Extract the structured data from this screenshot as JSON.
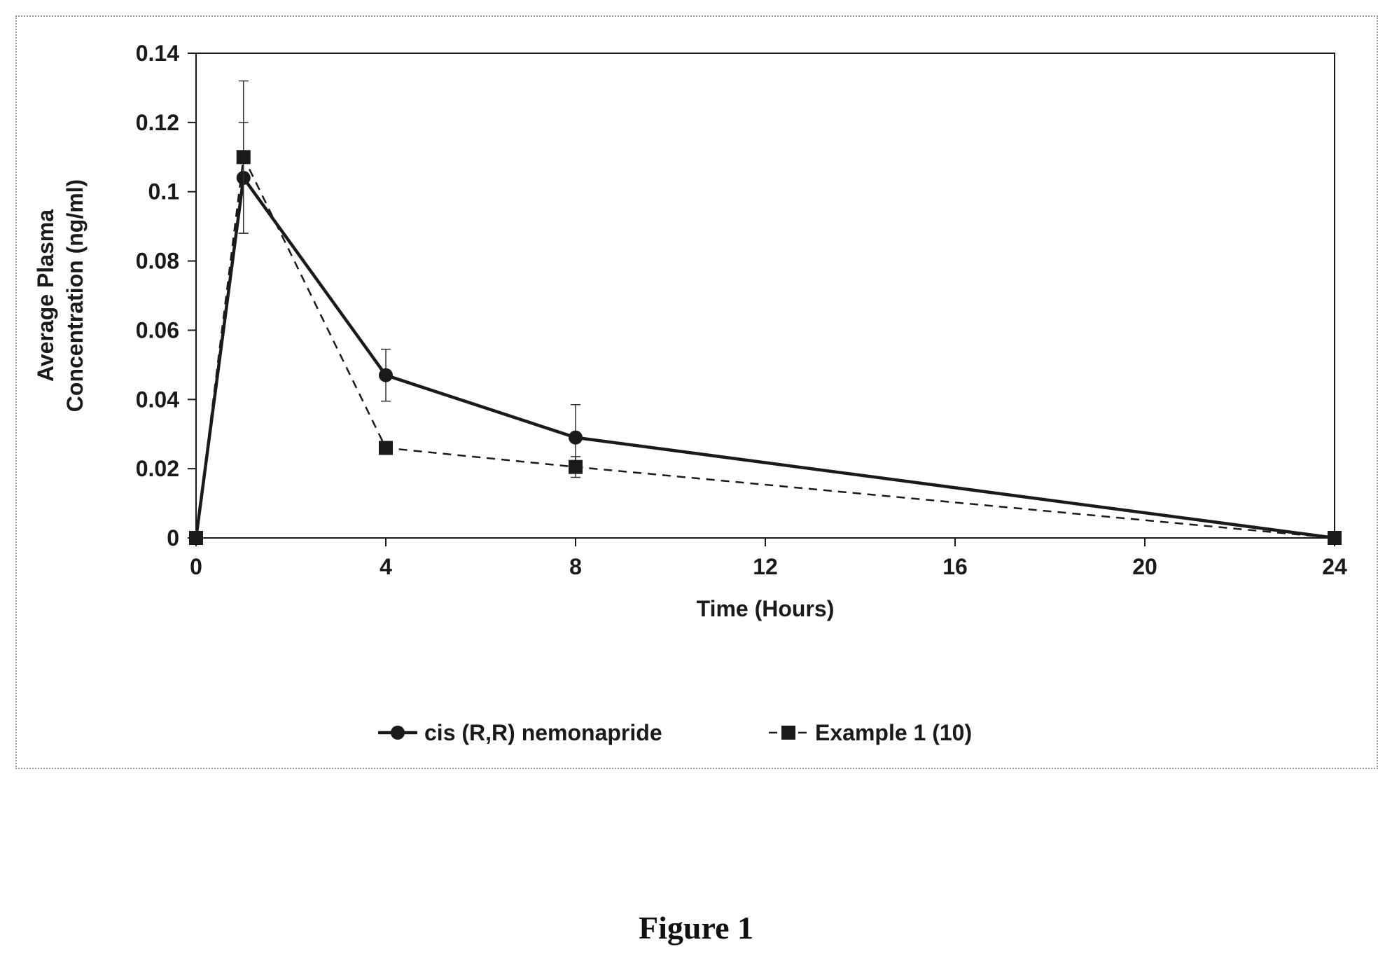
{
  "figure_caption": "Figure 1",
  "chart_data": {
    "type": "line",
    "x_ticks": [
      0,
      4,
      8,
      12,
      16,
      20,
      24
    ],
    "y_ticks": [
      "0",
      "0.02",
      "0.04",
      "0.06",
      "0.08",
      "0.1",
      "0.12",
      "0.14"
    ],
    "xlim": [
      0,
      24
    ],
    "ylim": [
      0,
      0.14
    ],
    "xlabel": "Time (Hours)",
    "ylabel": "Average Plasma Concentration (ng/ml)",
    "ylabel_lines": [
      "Average Plasma",
      "Concentration (ng/ml)"
    ],
    "legend_position": "bottom",
    "grid": false,
    "series": [
      {
        "name": "cis (R,R) nemonapride",
        "marker": "circle",
        "line_style": "solid",
        "color": "#1a1a1a",
        "points": [
          {
            "x": 0,
            "y": 0,
            "err": 0
          },
          {
            "x": 1,
            "y": 0.104,
            "err": 0.016
          },
          {
            "x": 4,
            "y": 0.047,
            "err": 0.0075
          },
          {
            "x": 8,
            "y": 0.029,
            "err": 0.0095
          },
          {
            "x": 24,
            "y": 0,
            "err": 0
          }
        ]
      },
      {
        "name": "Example 1 (10)",
        "marker": "square",
        "line_style": "dashed",
        "color": "#1a1a1a",
        "points": [
          {
            "x": 0,
            "y": 0,
            "err": 0
          },
          {
            "x": 1,
            "y": 0.11,
            "err": 0.022
          },
          {
            "x": 4,
            "y": 0.026,
            "err": 0.001
          },
          {
            "x": 8,
            "y": 0.0205,
            "err": 0.003
          },
          {
            "x": 24,
            "y": 0,
            "err": 0
          }
        ]
      }
    ]
  }
}
